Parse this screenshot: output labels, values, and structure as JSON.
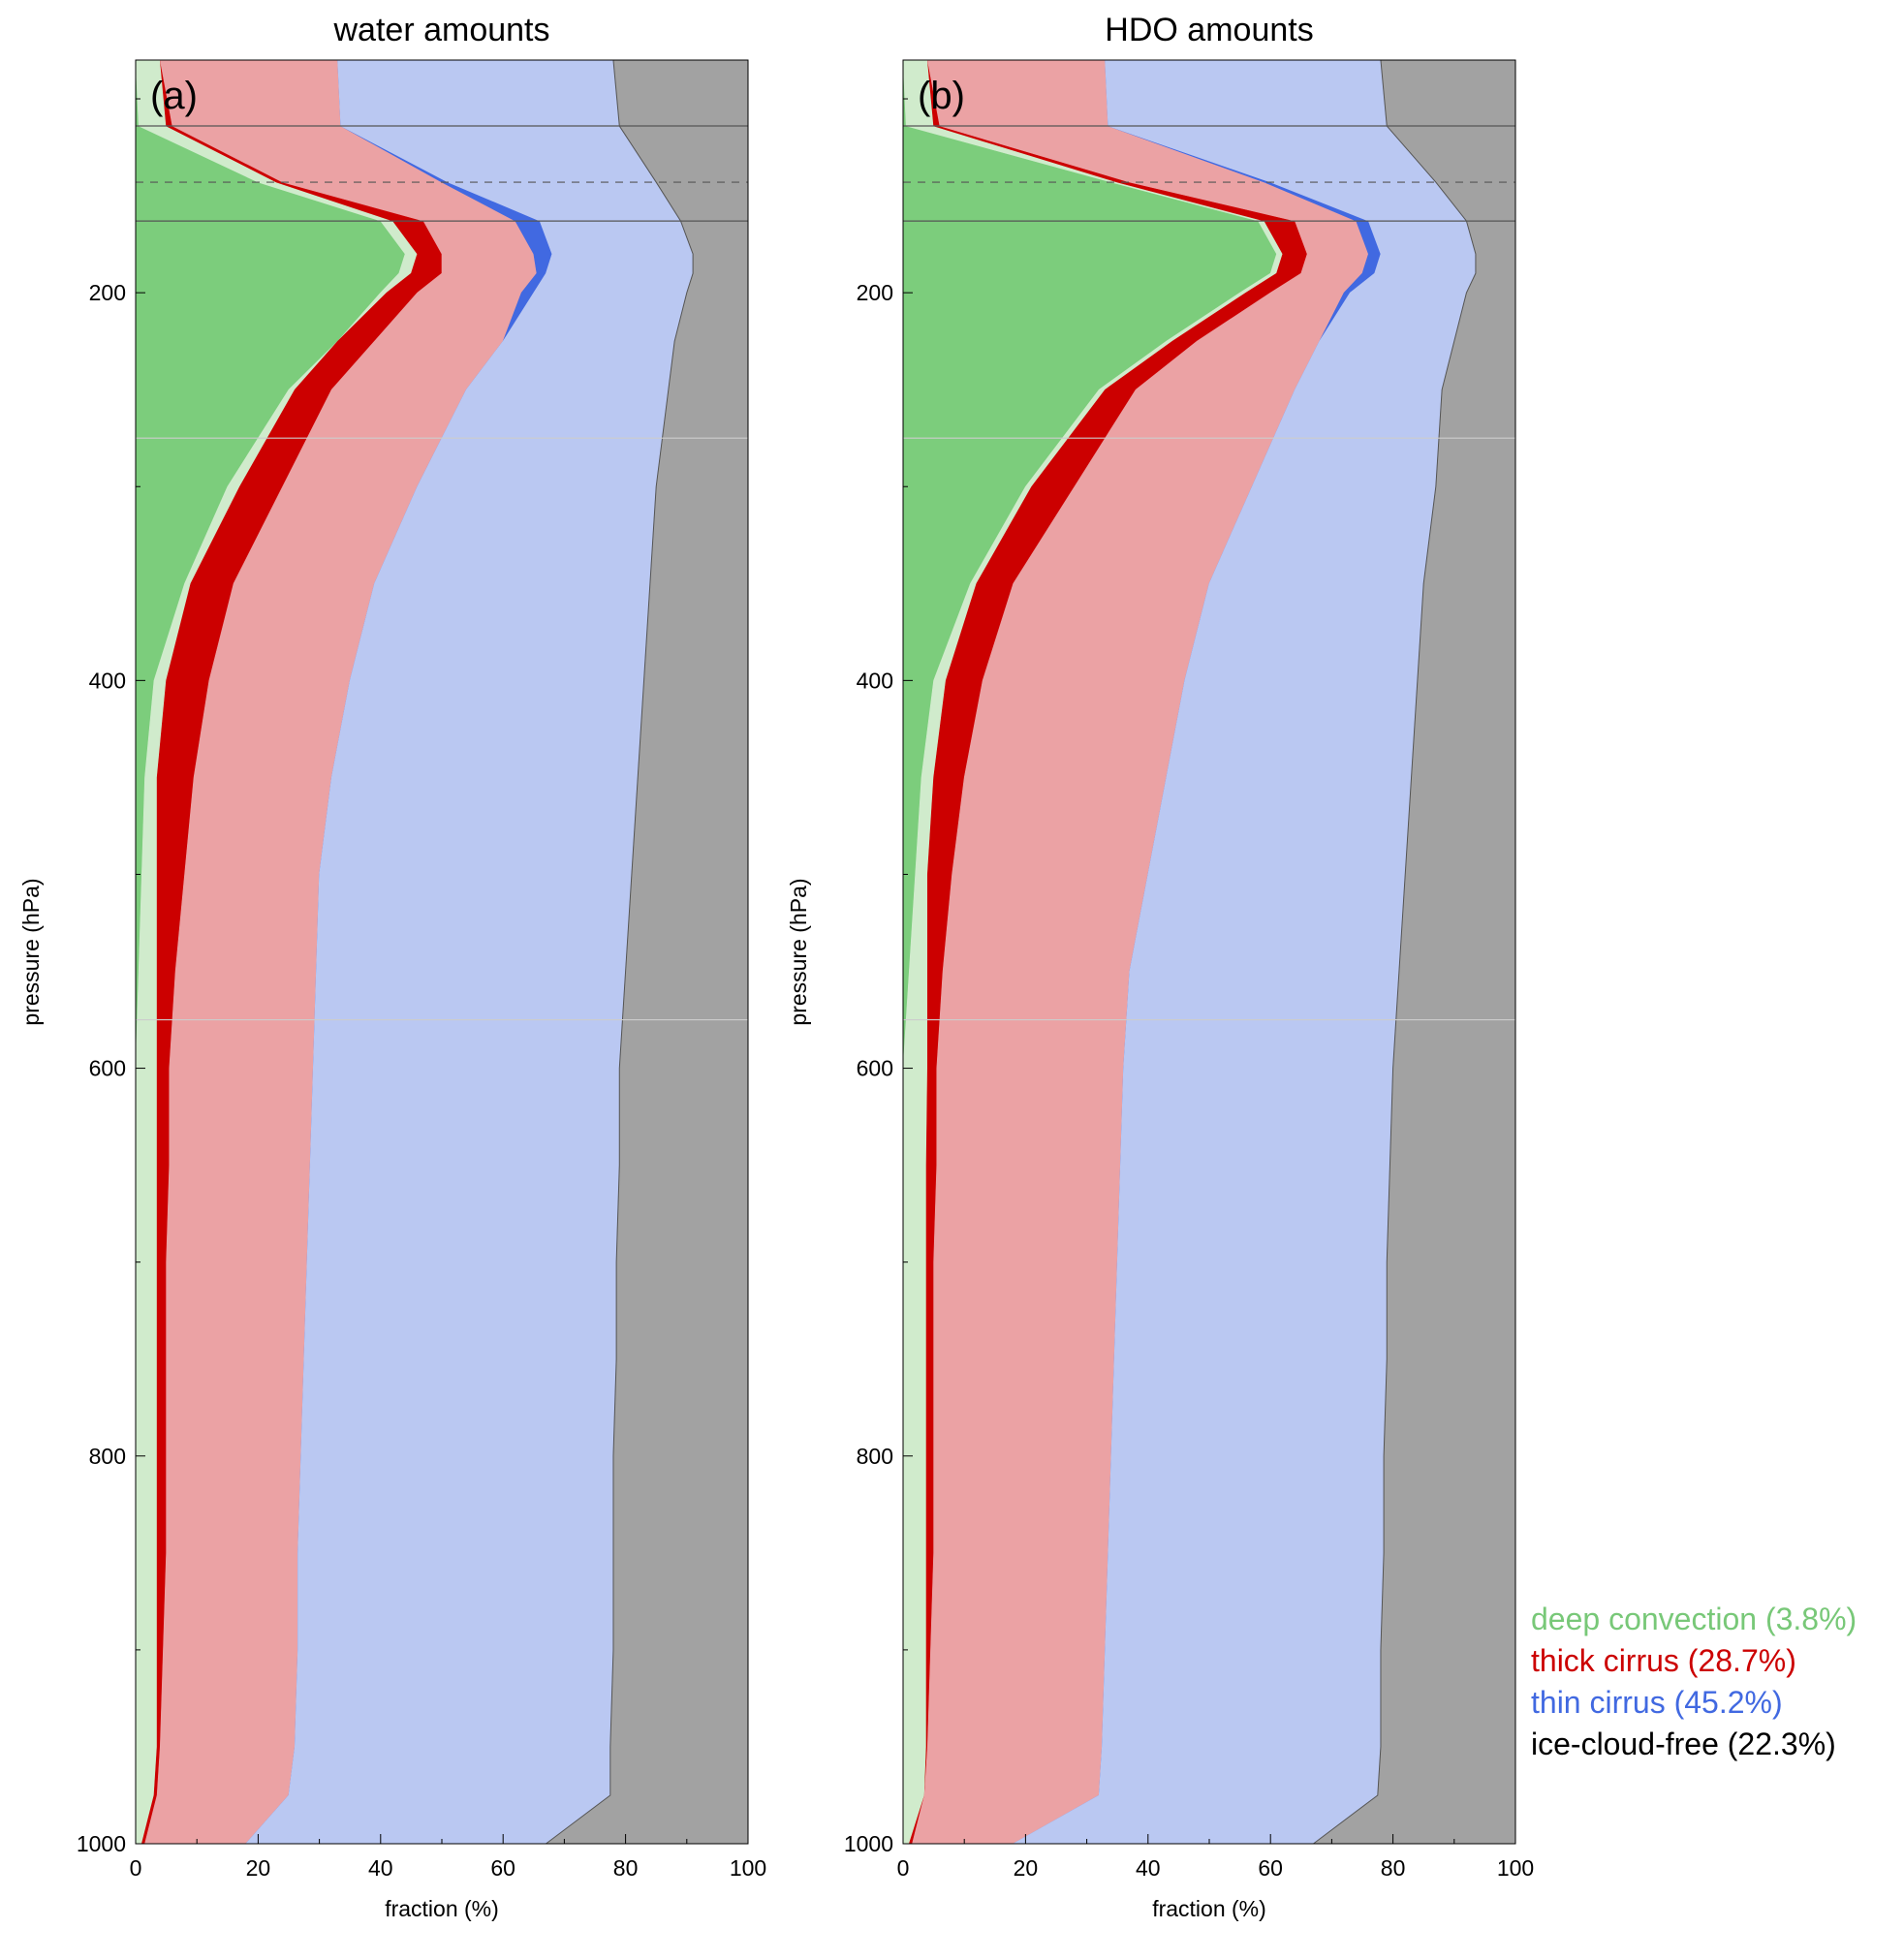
{
  "chart_data": {
    "type": "area",
    "legend": {
      "placement": "right",
      "entries": [
        {
          "label": "deep convection (3.8%)",
          "color": "#78c878"
        },
        {
          "label": "thick cirrus (28.7%)",
          "color": "#cc0000"
        },
        {
          "label": "thin cirrus (45.2%)",
          "color": "#4169e1"
        },
        {
          "label": "ice-cloud-free (22.3%)",
          "color": "#000000"
        }
      ]
    },
    "colors": {
      "deep_dark": "#7ccd7c",
      "deep_light": "#d0ebcc",
      "thick_dark": "#cc0000",
      "thick_light": "#eba2a4",
      "thin_dark": "#4169e1",
      "thin_light": "#bac8f2",
      "free": "#a2a2a2"
    },
    "panels": [
      {
        "label": "(a)",
        "title": "water amounts",
        "xlabel": "fraction (%)",
        "ylabel": "pressure (hPa)",
        "xlim": [
          0,
          100
        ],
        "ylim": [
          1000,
          80
        ],
        "xticks": [
          0,
          20,
          40,
          60,
          80,
          100
        ],
        "yticks": [
          200,
          400,
          600,
          800,
          1000
        ],
        "hlines": [
          {
            "p": 114,
            "style": "solid",
            "color": "#555555"
          },
          {
            "p": 143,
            "style": "dashed",
            "color": "#555555"
          },
          {
            "p": 163,
            "style": "solid",
            "color": "#555555"
          },
          {
            "p": 275,
            "style": "solid",
            "color": "#cccccc"
          },
          {
            "p": 575,
            "style": "solid",
            "color": "#cccccc"
          }
        ],
        "pressure": [
          80,
          114,
          143,
          163,
          180,
          190,
          200,
          225,
          250,
          300,
          350,
          400,
          450,
          500,
          550,
          600,
          650,
          700,
          750,
          800,
          850,
          900,
          950,
          975,
          1000
        ],
        "boundaries": {
          "b1": [
            0,
            0.5,
            20,
            40,
            44,
            43,
            40,
            33,
            25,
            15,
            8,
            3,
            1.5,
            1,
            0.5,
            0,
            0,
            0,
            0,
            0,
            0,
            0,
            0,
            0,
            0
          ],
          "b2": [
            4,
            5,
            23,
            42,
            46,
            45,
            41,
            33,
            26,
            17,
            9,
            5,
            3.5,
            3.5,
            3.5,
            3.5,
            3.5,
            3.5,
            3.5,
            3.5,
            3.5,
            3.5,
            3.5,
            3,
            1
          ],
          "b3": [
            4,
            6,
            24,
            47,
            50,
            50,
            46,
            39,
            32,
            24,
            16,
            12,
            9.5,
            8,
            6.5,
            5.5,
            5.5,
            5,
            5,
            5,
            5,
            4.5,
            4,
            3.5,
            1.5
          ],
          "b4": [
            33,
            33.5,
            50,
            62,
            65,
            65.5,
            63,
            60,
            54,
            46,
            39,
            35,
            32,
            30,
            29.5,
            29,
            28.5,
            28,
            27.5,
            27,
            26.5,
            26.5,
            26,
            25,
            18
          ],
          "b5": [
            33,
            33.5,
            51,
            66,
            68,
            67,
            65,
            60,
            54,
            46,
            39,
            35,
            32,
            30,
            29.5,
            29,
            28.5,
            28,
            27.5,
            27,
            26.5,
            26.5,
            26,
            25,
            18
          ],
          "b6": [
            78,
            79,
            85,
            89,
            91,
            91,
            90,
            88,
            87,
            85,
            84,
            83,
            82,
            81,
            80,
            79,
            79,
            78.5,
            78.5,
            78,
            78,
            78,
            77.5,
            77.5,
            67
          ]
        }
      },
      {
        "label": "(b)",
        "title": "HDO amounts",
        "xlabel": "fraction (%)",
        "ylabel": "pressure (hPa)",
        "xlim": [
          0,
          100
        ],
        "ylim": [
          1000,
          80
        ],
        "xticks": [
          0,
          20,
          40,
          60,
          80,
          100
        ],
        "yticks": [
          200,
          400,
          600,
          800,
          1000
        ],
        "hlines": [
          {
            "p": 114,
            "style": "solid",
            "color": "#555555"
          },
          {
            "p": 143,
            "style": "dashed",
            "color": "#555555"
          },
          {
            "p": 163,
            "style": "solid",
            "color": "#555555"
          },
          {
            "p": 275,
            "style": "solid",
            "color": "#cccccc"
          },
          {
            "p": 575,
            "style": "solid",
            "color": "#cccccc"
          }
        ],
        "pressure": [
          80,
          114,
          143,
          163,
          180,
          190,
          200,
          225,
          250,
          300,
          350,
          400,
          450,
          500,
          550,
          600,
          650,
          700,
          750,
          800,
          850,
          900,
          950,
          975,
          1000
        ],
        "boundaries": {
          "b1": [
            0,
            0.5,
            34,
            58,
            61,
            60,
            55,
            43,
            32,
            20,
            11,
            5,
            3,
            2,
            1,
            0,
            0,
            0,
            0,
            0,
            0,
            0,
            0,
            0,
            0
          ],
          "b2": [
            4,
            5,
            35,
            59,
            62,
            61,
            56,
            44,
            33,
            21,
            12,
            7,
            5,
            4,
            4,
            4,
            3.8,
            3.8,
            3.8,
            3.8,
            3.8,
            3.8,
            3.8,
            3.5,
            1
          ],
          "b3": [
            4,
            6,
            37,
            64,
            66,
            65,
            60,
            48,
            38,
            28,
            18,
            13,
            10,
            8,
            6.5,
            5.5,
            5.5,
            5,
            5,
            5,
            5,
            4.5,
            4,
            3.5,
            1.5
          ],
          "b4": [
            33,
            33.5,
            59,
            74,
            76,
            75,
            72,
            68,
            64,
            57,
            50,
            46,
            43,
            40,
            37,
            36,
            35.5,
            35,
            34.5,
            34,
            33.5,
            33,
            32.5,
            32,
            18
          ],
          "b5": [
            33,
            33.5,
            60,
            76,
            78,
            77,
            73,
            68,
            64,
            57,
            50,
            46,
            43,
            40,
            37,
            36,
            35.5,
            35,
            34.5,
            34,
            33.5,
            33,
            32.5,
            32,
            18
          ],
          "b6": [
            78,
            79,
            87,
            92,
            93.5,
            93.5,
            92,
            90,
            88,
            87,
            85,
            84,
            83,
            82,
            81,
            80,
            79.5,
            79,
            79,
            78.5,
            78.5,
            78,
            78,
            77.5,
            67
          ]
        }
      }
    ]
  }
}
